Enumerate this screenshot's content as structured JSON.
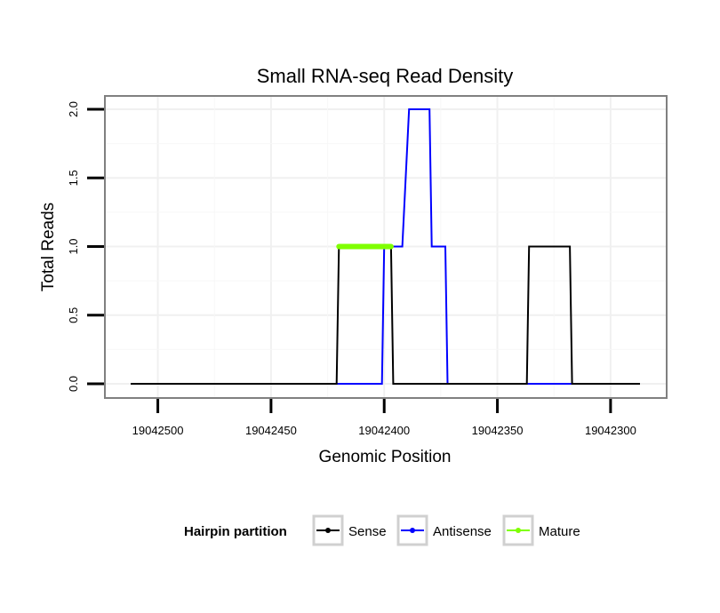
{
  "chart_data": {
    "type": "line",
    "title": "Small RNA-seq Read Density",
    "xlabel": "Genomic Position",
    "ylabel": "Total Reads",
    "x_reversed": true,
    "xlim": [
      19042525,
      19042275
    ],
    "ylim": [
      0,
      2
    ],
    "x_ticks": [
      19042500,
      19042450,
      19042400,
      19042350,
      19042300
    ],
    "x_tick_labels": [
      "19042500",
      "19042450",
      "19042400",
      "19042350",
      "19042300"
    ],
    "y_ticks": [
      0,
      0.5,
      1,
      1.5,
      2
    ],
    "y_tick_labels": [
      "0.0",
      "0.5",
      "1.0",
      "1.5",
      "2.0"
    ],
    "grid": true,
    "legend": {
      "title": "Hairpin partition",
      "position": "bottom",
      "entries": [
        {
          "label": "Sense",
          "color": "#000000"
        },
        {
          "label": "Antisense",
          "color": "#0000ff"
        },
        {
          "label": "Mature",
          "color": "#7fff00"
        }
      ]
    },
    "series": [
      {
        "name": "Antisense",
        "color": "#0000ff",
        "x": [
          19042512,
          19042401,
          19042400,
          19042396,
          19042392,
          19042389,
          19042380,
          19042379,
          19042373,
          19042372,
          19042351,
          19042350,
          19042345,
          19042344,
          19042338,
          19042337,
          19042287
        ],
        "y": [
          0,
          0,
          1,
          1,
          1,
          2,
          2,
          1,
          1,
          0,
          0,
          0,
          0,
          0,
          0,
          0,
          0
        ]
      },
      {
        "name": "Sense",
        "color": "#000000",
        "x": [
          19042512,
          19042421,
          19042420,
          19042397,
          19042396,
          19042337,
          19042336,
          19042318,
          19042317,
          19042287
        ],
        "y": [
          0,
          0,
          1,
          1,
          0,
          0,
          1,
          1,
          0,
          0
        ]
      },
      {
        "name": "Mature",
        "color": "#7fff00",
        "x": [
          19042420,
          19042397
        ],
        "y": [
          1,
          1
        ]
      }
    ]
  }
}
